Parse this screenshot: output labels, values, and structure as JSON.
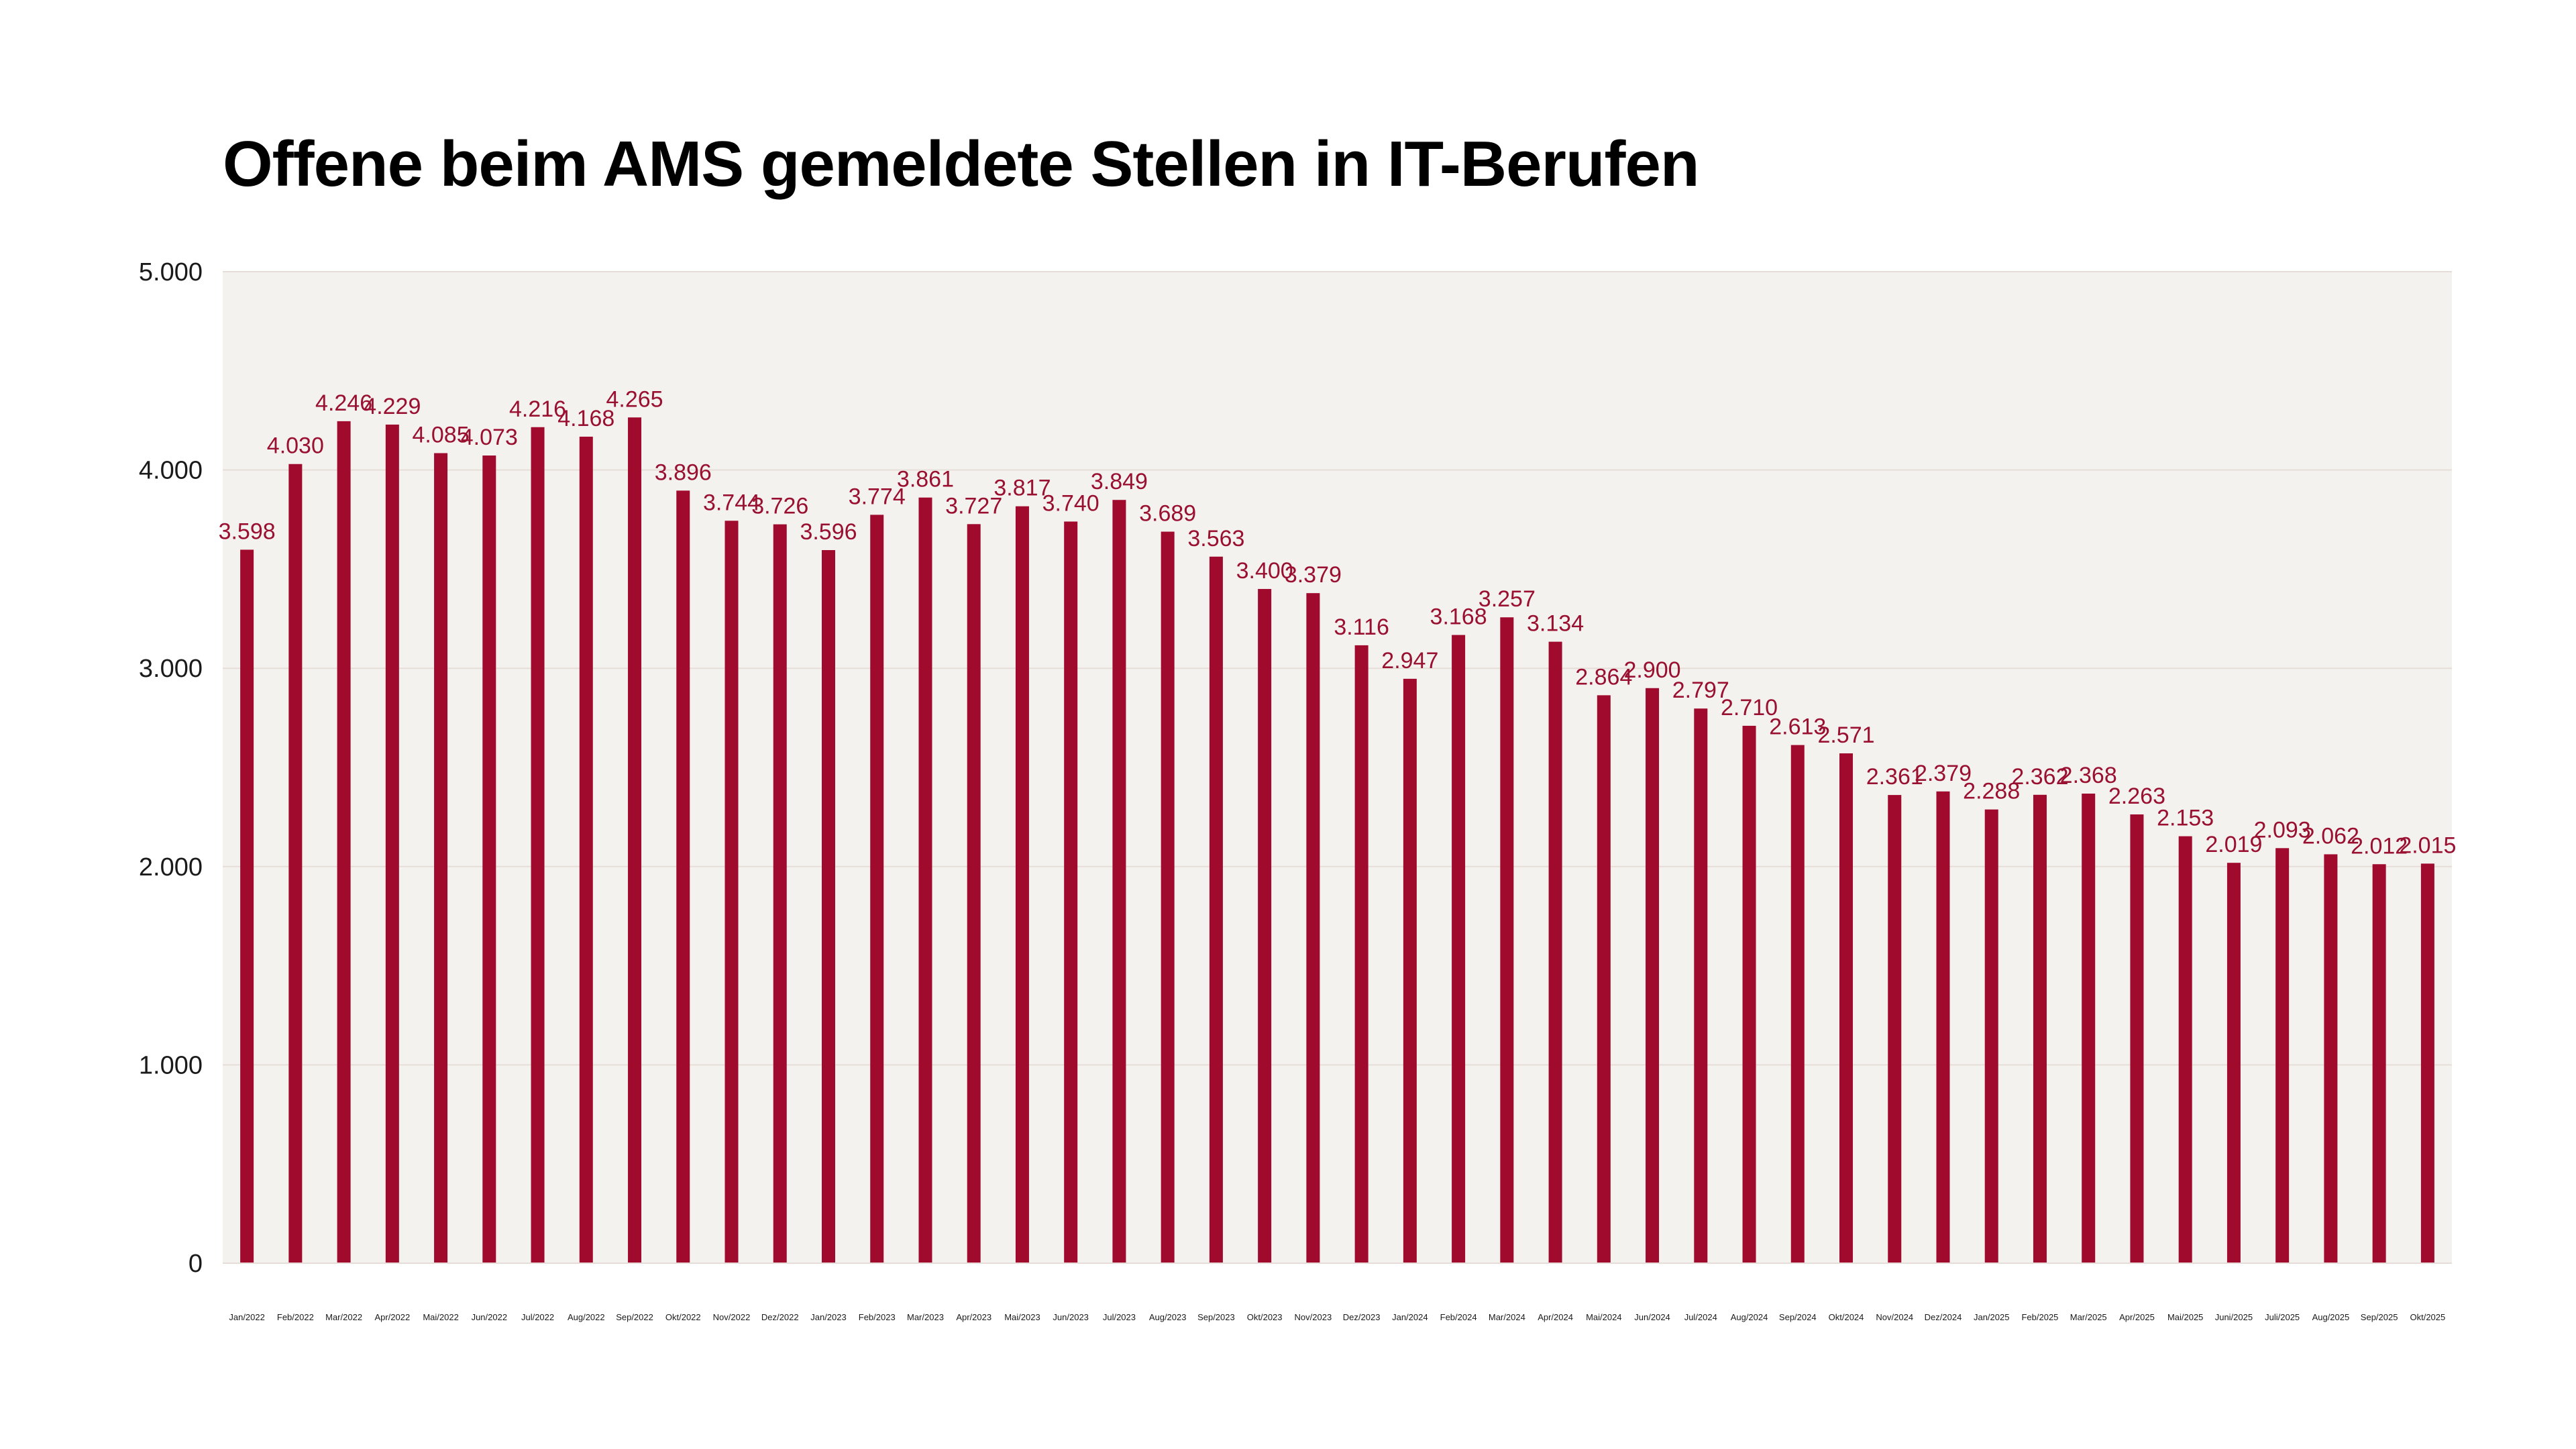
{
  "title": "Offene beim AMS gemeldete Stellen in IT-Berufen",
  "colors": {
    "bar": "#a00a2d",
    "label": "#9a1030",
    "plot_background": "#f4f2ef",
    "gridline": "#e6ddd8"
  },
  "chart_data": {
    "type": "bar",
    "title": "Offene beim AMS gemeldete Stellen in IT-Berufen",
    "xlabel": "",
    "ylabel": "",
    "ylim": [
      0,
      5000
    ],
    "yticks": [
      0,
      1000,
      2000,
      3000,
      4000,
      5000
    ],
    "ytick_labels": [
      "0",
      "1.000",
      "2.000",
      "3.000",
      "4.000",
      "5.000"
    ],
    "grid": true,
    "legend": "none",
    "categories": [
      "Jan/2022",
      "Feb/2022",
      "Mar/2022",
      "Apr/2022",
      "Mai/2022",
      "Jun/2022",
      "Jul/2022",
      "Aug/2022",
      "Sep/2022",
      "Okt/2022",
      "Nov/2022",
      "Dez/2022",
      "Jan/2023",
      "Feb/2023",
      "Mar/2023",
      "Apr/2023",
      "Mai/2023",
      "Jun/2023",
      "Jul/2023",
      "Aug/2023",
      "Sep/2023",
      "Okt/2023",
      "Nov/2023",
      "Dez/2023",
      "Jan/2024",
      "Feb/2024",
      "Mar/2024",
      "Apr/2024",
      "Mai/2024",
      "Jun/2024",
      "Jul/2024",
      "Aug/2024",
      "Sep/2024",
      "Okt/2024",
      "Nov/2024",
      "Dez/2024",
      "Jan/2025",
      "Feb/2025",
      "Mar/2025",
      "Apr/2025",
      "Mai/2025",
      "Juni/2025",
      "Juli/2025",
      "Aug/2025",
      "Sep/2025",
      "Okt/2025"
    ],
    "values": [
      3598,
      4030,
      4246,
      4229,
      4085,
      4073,
      4216,
      4168,
      4265,
      3896,
      3744,
      3726,
      3596,
      3774,
      3861,
      3727,
      3817,
      3740,
      3849,
      3689,
      3563,
      3400,
      3379,
      3116,
      2947,
      3168,
      3257,
      3134,
      2864,
      2900,
      2797,
      2710,
      2613,
      2571,
      2361,
      2379,
      2288,
      2362,
      2368,
      2263,
      2153,
      2019,
      2093,
      2062,
      2012,
      2015
    ],
    "value_labels": [
      "3.598",
      "4.030",
      "4.246",
      "4.229",
      "4.085",
      "4.073",
      "4.216",
      "4.168",
      "4.265",
      "3.896",
      "3.744",
      "3.726",
      "3.596",
      "3.774",
      "3.861",
      "3.727",
      "3.817",
      "3.740",
      "3.849",
      "3.689",
      "3.563",
      "3.400",
      "3.379",
      "3.116",
      "2.947",
      "3.168",
      "3.257",
      "3.134",
      "2.864",
      "2.900",
      "2.797",
      "2.710",
      "2.613",
      "2.571",
      "2.361",
      "2.379",
      "2.288",
      "2.362",
      "2.368",
      "2.263",
      "2.153",
      "2.019",
      "2.093",
      "2.062",
      "2.012",
      "2.015"
    ]
  }
}
